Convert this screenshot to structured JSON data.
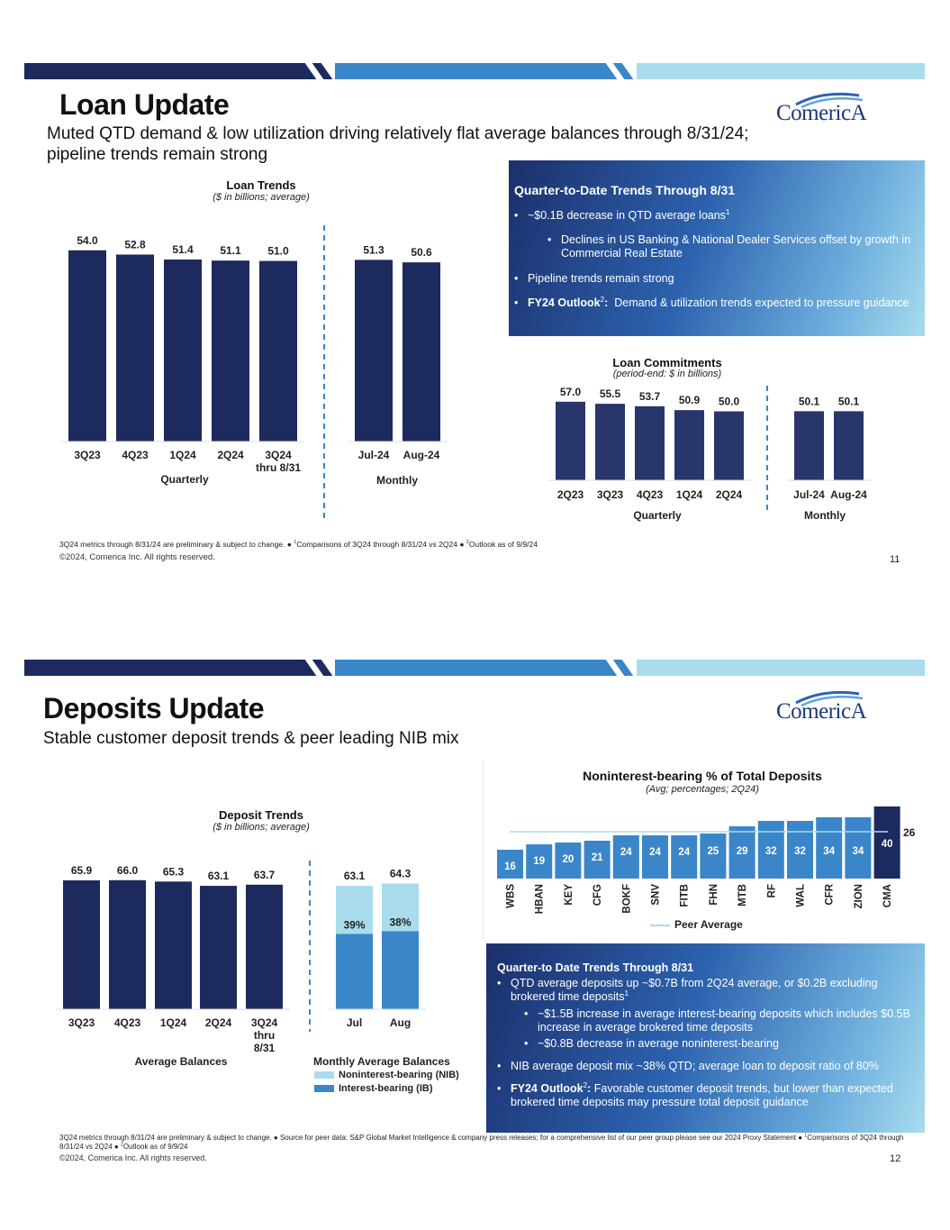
{
  "slides": [
    {
      "title": "Loan Update",
      "subtitle_line1": "Muted QTD demand & low utilization driving relatively flat average balances through 8/31/24;",
      "subtitle_line2": "pipeline trends remain strong",
      "logo_text": "ComericA",
      "box": {
        "heading": "Quarter-to-Date Trends Through 8/31",
        "b1": "~$0.1B decrease in QTD average loans",
        "b1_sup": "1",
        "b1_sub": "Declines in US Banking & National Dealer Services offset by growth in Commercial Real Estate",
        "b2": "Pipeline trends remain strong",
        "b3_bold": "FY24 Outlook",
        "b3_sup": "2",
        "b3_colon": ":",
        "b3": "Demand & utilization trends expected to pressure guidance"
      },
      "footnote_a": "3Q24 metrics through 8/31/24 are preliminary & subject to change. ● ",
      "footnote_b": "Comparisons of 3Q24 through 8/31/24 vs 2Q24 ● ",
      "footnote_c": "Outlook as of 9/9/24",
      "copyright": "©2024, Comerica Inc. All rights reserved.",
      "page_number": "11"
    },
    {
      "title": "Deposits Update",
      "subtitle_line1": "Stable customer deposit trends & peer leading NIB mix",
      "logo_text": "ComericA",
      "box": {
        "heading": "Quarter-to Date Trends Through 8/31",
        "b1": "QTD average deposits up ~$0.7B from 2Q24 average, or $0.2B excluding brokered time deposits",
        "b1_sup": "1",
        "b1_sub1": "~$1.5B increase in average interest-bearing deposits which includes $0.5B increase in average brokered time deposits",
        "b1_sub2": "~$0.8B decrease in average noninterest-bearing",
        "b2": "NIB average deposit mix ~38% QTD; average loan to deposit ratio of 80%",
        "b3_bold": "FY24 Outlook",
        "b3_sup": "2",
        "b3_colon": ":",
        "b3": "Favorable customer deposit trends, but lower than expected brokered time deposits may pressure total deposit guidance"
      },
      "footnote_a": "3Q24 metrics through 8/31/24 are preliminary & subject to change. ● Source for peer data: S&P Global Market Intelligence & company press releases; for a comprehensive list of our peer group please see our 2024 Proxy Statement ● ",
      "footnote_b": "Comparisons of 3Q24 through 8/31/24 vs 2Q24 ● ",
      "footnote_c": "Outlook as of 9/9/24",
      "copyright": "©2024, Comerica Inc. All rights reserved.",
      "page_number": "12"
    }
  ],
  "colors": {
    "navy": "#1c2a5e",
    "commit_bar": "#28366c",
    "blue": "#3a86c8",
    "light_blue": "#a9dcec",
    "peer_line": "#a9dcec"
  },
  "chart_data": [
    {
      "type": "bar",
      "title": "Loan Trends",
      "subtitle": "($ in billions; average)",
      "categories": [
        "3Q23",
        "4Q23",
        "1Q24",
        "2Q24",
        "3Q24 thru 8/31",
        "Jul-24",
        "Aug-24"
      ],
      "values": [
        54.0,
        52.8,
        51.4,
        51.1,
        51.0,
        51.3,
        50.6
      ],
      "group_labels": [
        "Quarterly",
        "Monthly"
      ]
    },
    {
      "type": "bar",
      "title": "Loan Commitments",
      "subtitle": "(period-end: $ in billions)",
      "categories": [
        "2Q23",
        "3Q23",
        "4Q23",
        "1Q24",
        "2Q24",
        "Jul-24",
        "Aug-24"
      ],
      "values": [
        57.0,
        55.5,
        53.7,
        50.9,
        50.0,
        50.1,
        50.1
      ],
      "group_labels": [
        "Quarterly",
        "Monthly"
      ]
    },
    {
      "type": "bar",
      "title": "Deposit Trends",
      "subtitle": "($ in billions; average)",
      "categories": [
        "3Q23",
        "4Q23",
        "1Q24",
        "2Q24",
        "3Q24 thru 8/31",
        "Jul",
        "Aug"
      ],
      "values": [
        65.9,
        66.0,
        65.3,
        63.1,
        63.7,
        63.1,
        64.3
      ],
      "nib_pct": [
        null,
        null,
        null,
        null,
        null,
        39,
        38
      ],
      "group_labels": [
        "Average Balances",
        "Monthly Average Balances"
      ],
      "legend": [
        "Noninterest-bearing (NIB)",
        "Interest-bearing (IB)"
      ]
    },
    {
      "type": "bar",
      "title": "Noninterest-bearing % of Total Deposits",
      "subtitle": "(Avg; percentages; 2Q24)",
      "categories": [
        "WBS",
        "HBAN",
        "KEY",
        "CFG",
        "BOKF",
        "SNV",
        "FITB",
        "FHN",
        "MTB",
        "RF",
        "WAL",
        "CFR",
        "ZION",
        "CMA"
      ],
      "values": [
        16,
        19,
        20,
        21,
        24,
        24,
        24,
        25,
        29,
        32,
        32,
        34,
        34,
        40
      ],
      "highlight": "CMA",
      "peer_average": 26,
      "legend": [
        "Peer Average"
      ]
    }
  ]
}
